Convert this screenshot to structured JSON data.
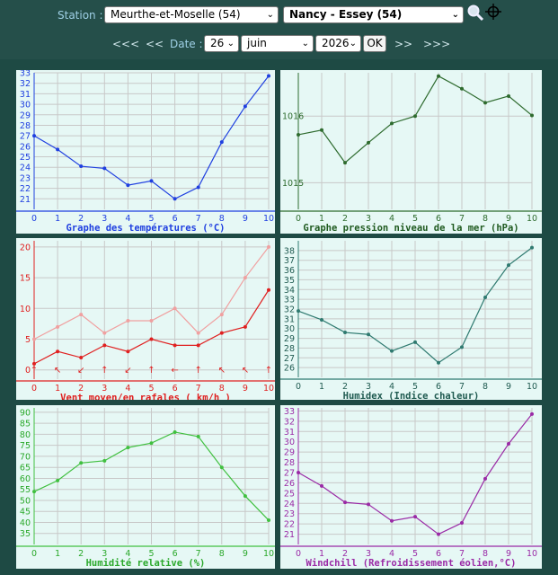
{
  "header": {
    "station_label": "Station :",
    "department": "Meurthe-et-Moselle (54)",
    "station": "Nancy - Essey (54)"
  },
  "nav": {
    "prev3": "<<<",
    "prev": "<<",
    "date_label": "Date :",
    "day": "26",
    "month": "juin",
    "year": "2026",
    "ok": "OK",
    "next": ">>",
    "next3": ">>>"
  },
  "icons": {
    "search": "search-icon",
    "target": "crosshair-icon"
  },
  "chart_data": [
    {
      "id": "temp",
      "type": "line",
      "title": "Graphe des températures (°C)",
      "x": [
        0,
        1,
        2,
        3,
        4,
        5,
        6,
        7,
        8,
        9,
        10
      ],
      "ylim": [
        20,
        33
      ],
      "yticks": [
        21,
        22,
        23,
        24,
        25,
        26,
        27,
        28,
        29,
        30,
        31,
        32,
        33
      ],
      "series": [
        {
          "values": [
            27,
            25.7,
            24.1,
            23.9,
            22.3,
            22.7,
            21,
            22.1,
            26.4,
            29.8,
            32.7
          ],
          "color": "#1f3fe0"
        }
      ]
    },
    {
      "id": "pressure",
      "type": "line",
      "title": "Graphe pression niveau de la mer (hPa)",
      "x": [
        0,
        1,
        2,
        3,
        4,
        5,
        6,
        7,
        8,
        9,
        10
      ],
      "ylim": [
        1014.6,
        1016.65
      ],
      "yticks": [
        1015,
        1016
      ],
      "series": [
        {
          "values": [
            1015.72,
            1015.79,
            1015.3,
            1015.6,
            1015.89,
            1016,
            1016.6,
            1016.41,
            1016.2,
            1016.3,
            1016.01
          ],
          "color": "#2e6b2e"
        }
      ]
    },
    {
      "id": "wind",
      "type": "line",
      "title": "Vent moyen/en rafales ( km/h )",
      "x": [
        0,
        1,
        2,
        3,
        4,
        5,
        6,
        7,
        8,
        9,
        10
      ],
      "ylim": [
        -1.5,
        21
      ],
      "yticks": [
        0,
        5,
        10,
        15,
        20
      ],
      "wind_directions": [
        "↑",
        "↖",
        "↙",
        "↑",
        "↙",
        "↑",
        "←",
        "↑",
        "↖",
        "↖",
        "↑"
      ],
      "series": [
        {
          "name": "moyen",
          "values": [
            1,
            3,
            2,
            4,
            3,
            5,
            4,
            4,
            6,
            7,
            13
          ],
          "color": "#e02020"
        },
        {
          "name": "rafales",
          "values": [
            5,
            7,
            9,
            6,
            8,
            8,
            10,
            6,
            9,
            15,
            20
          ],
          "color": "#f0a0a0"
        }
      ]
    },
    {
      "id": "humidex",
      "type": "line",
      "title": "Humidex (Indice chaleur)",
      "x": [
        0,
        1,
        2,
        3,
        4,
        5,
        6,
        7,
        8,
        9,
        10
      ],
      "ylim": [
        25,
        39
      ],
      "yticks": [
        26,
        27,
        28,
        29,
        30,
        31,
        32,
        33,
        34,
        35,
        36,
        37,
        38
      ],
      "series": [
        {
          "values": [
            31.8,
            30.9,
            29.6,
            29.4,
            27.7,
            28.6,
            26.5,
            28.1,
            33.2,
            36.5,
            38.3
          ],
          "color": "#2f7a70"
        }
      ]
    },
    {
      "id": "humidity",
      "type": "line",
      "title": "Humidité relative (%)",
      "x": [
        0,
        1,
        2,
        3,
        4,
        5,
        6,
        7,
        8,
        9,
        10
      ],
      "ylim": [
        30,
        92
      ],
      "yticks": [
        35,
        40,
        45,
        50,
        55,
        60,
        65,
        70,
        75,
        80,
        85,
        90
      ],
      "series": [
        {
          "values": [
            54,
            59,
            67,
            68,
            74,
            76,
            81,
            79,
            65,
            52,
            41
          ],
          "color": "#40c040"
        }
      ]
    },
    {
      "id": "windchill",
      "type": "line",
      "title": "Windchill (Refroidissement éolien,°C)",
      "x": [
        0,
        1,
        2,
        3,
        4,
        5,
        6,
        7,
        8,
        9,
        10
      ],
      "ylim": [
        20,
        33.3
      ],
      "yticks": [
        21,
        22,
        23,
        24,
        25,
        26,
        27,
        28,
        29,
        30,
        31,
        32,
        33
      ],
      "series": [
        {
          "values": [
            27,
            25.7,
            24.1,
            23.9,
            22.3,
            22.7,
            21,
            22.1,
            26.4,
            29.8,
            32.7
          ],
          "color": "#9a2aa6"
        }
      ]
    }
  ]
}
